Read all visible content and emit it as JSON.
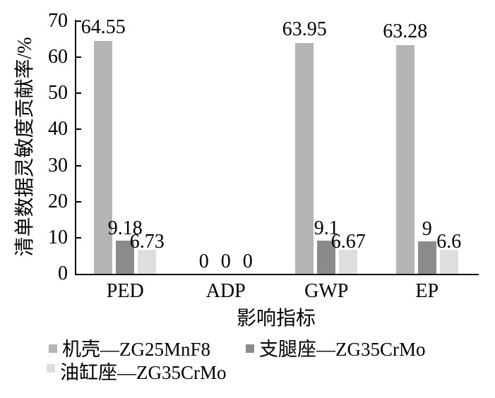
{
  "chart_data": {
    "type": "bar",
    "title": "",
    "xlabel": "影响指标",
    "ylabel": "清单数据灵敏度贡献率/%",
    "categories": [
      "PED",
      "ADP",
      "GWP",
      "EP"
    ],
    "series": [
      {
        "name": "机壳—ZG25MnF8",
        "color": "#b4b4b4",
        "values": [
          64.55,
          0,
          63.95,
          63.28
        ],
        "labels": [
          "64.55",
          "0",
          "63.95",
          "63.28"
        ]
      },
      {
        "name": "支腿座—ZG35CrMo",
        "color": "#8b8b8b",
        "values": [
          9.18,
          0,
          9.1,
          9
        ],
        "labels": [
          "9.18",
          "0",
          "9.1",
          "9"
        ]
      },
      {
        "name": "油缸座—ZG35CrMo",
        "color": "#dedede",
        "values": [
          6.73,
          0,
          6.67,
          6.6
        ],
        "labels": [
          "6.73",
          "0",
          "6.67",
          "6.6"
        ]
      }
    ],
    "ylim": [
      0,
      70
    ],
    "ytick_step": 10,
    "ytick_labels": [
      "0",
      "10",
      "20",
      "30",
      "40",
      "50",
      "60",
      "70"
    ],
    "grid": false,
    "legend_position": "bottom",
    "bar_labels_visible": true,
    "axis_color": "#000000",
    "background_color": "#ffffff"
  }
}
